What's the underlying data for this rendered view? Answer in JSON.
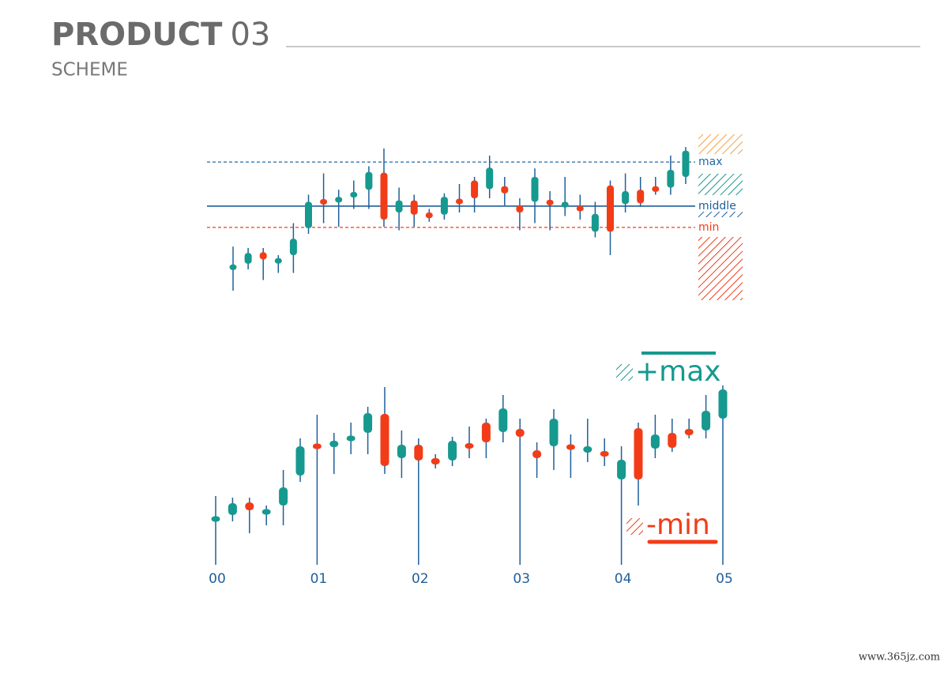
{
  "header": {
    "title_bold": "PRODUCT",
    "title_num": "03",
    "subtitle": "SCHEME"
  },
  "watermark": "www.365jz.com",
  "chart_data": {
    "type": "candlestick",
    "up_color": "#16998e",
    "down_color": "#f23c18",
    "ylim": [
      0,
      250
    ],
    "open": [
      63,
      68,
      84,
      72,
      80,
      118,
      156,
      154,
      165,
      172,
      196,
      140,
      157,
      140,
      137,
      156,
      185,
      173,
      177,
      150,
      155,
      155,
      147,
      146,
      113,
      178,
      152,
      172,
      177,
      175,
      190
    ],
    "high": [
      92,
      90,
      90,
      80,
      125,
      165,
      195,
      172,
      185,
      205,
      230,
      175,
      165,
      145,
      167,
      180,
      190,
      220,
      190,
      160,
      202,
      170,
      190,
      165,
      155,
      185,
      195,
      190,
      190,
      220,
      232
    ],
    "low": [
      30,
      60,
      45,
      55,
      55,
      110,
      125,
      120,
      145,
      145,
      120,
      115,
      120,
      127,
      130,
      140,
      140,
      160,
      150,
      115,
      125,
      115,
      135,
      130,
      105,
      80,
      140,
      148,
      165,
      165,
      180
    ],
    "close": [
      63,
      83,
      74,
      72,
      103,
      155,
      154,
      162,
      165,
      197,
      130,
      157,
      137,
      132,
      162,
      155,
      160,
      203,
      167,
      140,
      190,
      153,
      155,
      145,
      138,
      113,
      170,
      153,
      169,
      200,
      227
    ],
    "x_labels": [
      "00",
      "01",
      "02",
      "03",
      "04",
      "05"
    ],
    "reference_lines": [
      {
        "name": "max",
        "value": 211,
        "color": "#1f6aa5"
      },
      {
        "name": "middle",
        "value": 149,
        "color": "#1f5f9a"
      },
      {
        "name": "min",
        "value": 119,
        "color": "#f23c18"
      }
    ],
    "annotations": [
      "+max",
      "-min"
    ]
  }
}
